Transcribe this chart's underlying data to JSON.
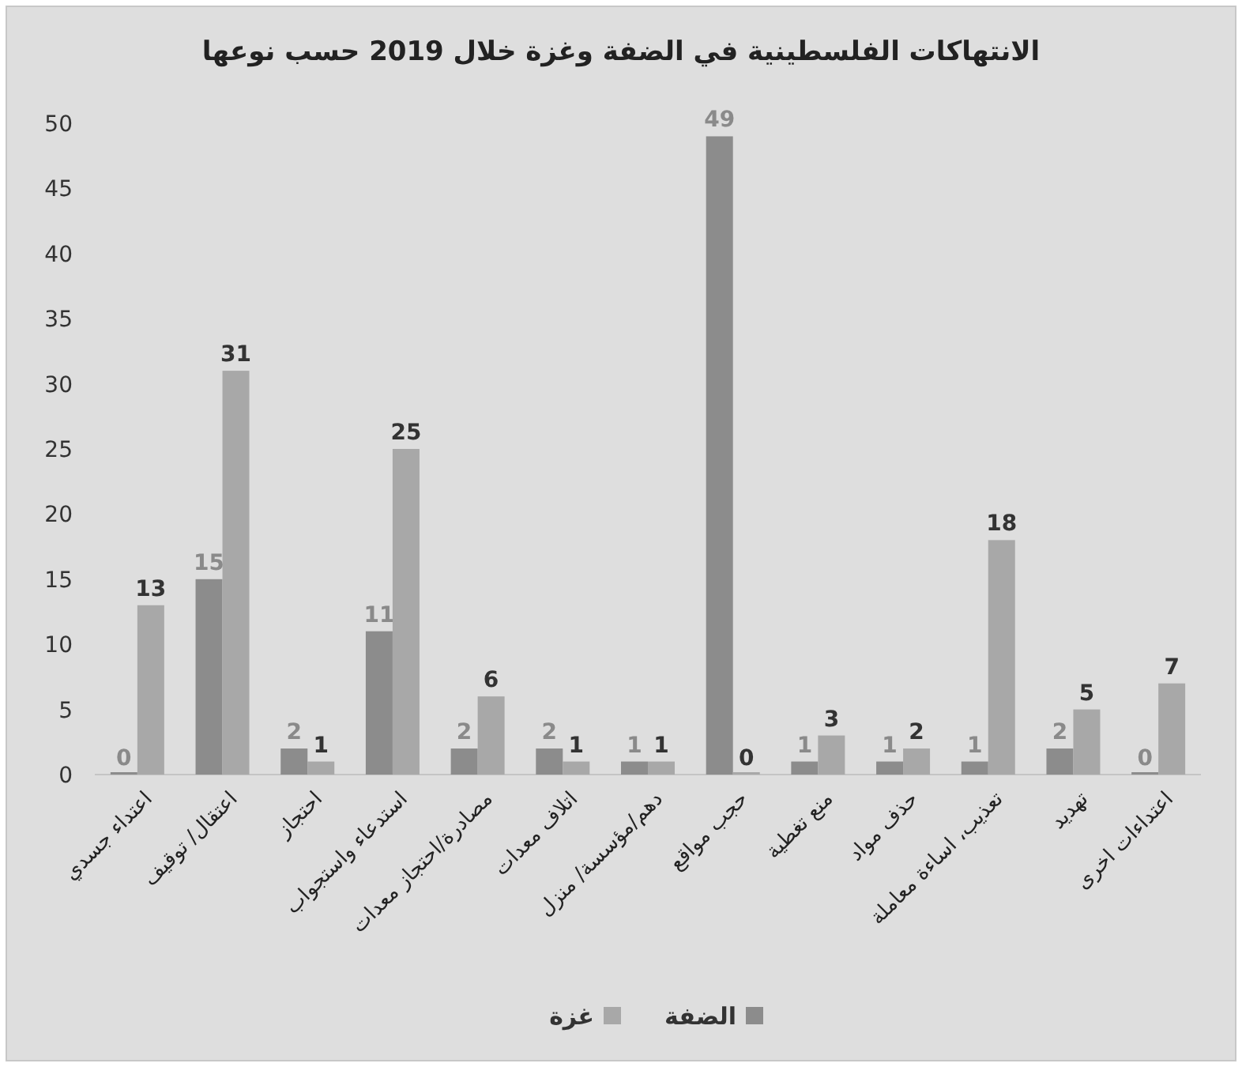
{
  "chart_data": {
    "type": "bar",
    "title": "الانتهاكات الفلسطينية في الضفة وغزة خلال 2019 حسب نوعها",
    "categories": [
      "اعتداء جسدي",
      "اعتقال/ توقيف",
      "احتجاز",
      "استدعاء واستجواب",
      "مصادرة/احتجاز معدات",
      "اتلاف معدات",
      "دهم/مؤسسة/ منزل",
      "حجب مواقع",
      "منع تغطية",
      "حذف مواد",
      "تعذيب، اساءة معاملة",
      "تهديد",
      "اعتداءات اخرى"
    ],
    "series": [
      {
        "name": "الضفة",
        "color": "#8c8c8c",
        "values": [
          0,
          15,
          2,
          11,
          2,
          2,
          1,
          49,
          1,
          1,
          1,
          2,
          0
        ]
      },
      {
        "name": "غزة",
        "color": "#a8a8a8",
        "values": [
          13,
          31,
          1,
          25,
          6,
          1,
          1,
          0,
          3,
          2,
          18,
          5,
          7
        ]
      }
    ],
    "ylim": [
      0,
      50
    ],
    "yticks": [
      0,
      5,
      10,
      15,
      20,
      25,
      30,
      35,
      40,
      45,
      50
    ],
    "data_labels": true,
    "grid": false,
    "legend": "bottom"
  }
}
